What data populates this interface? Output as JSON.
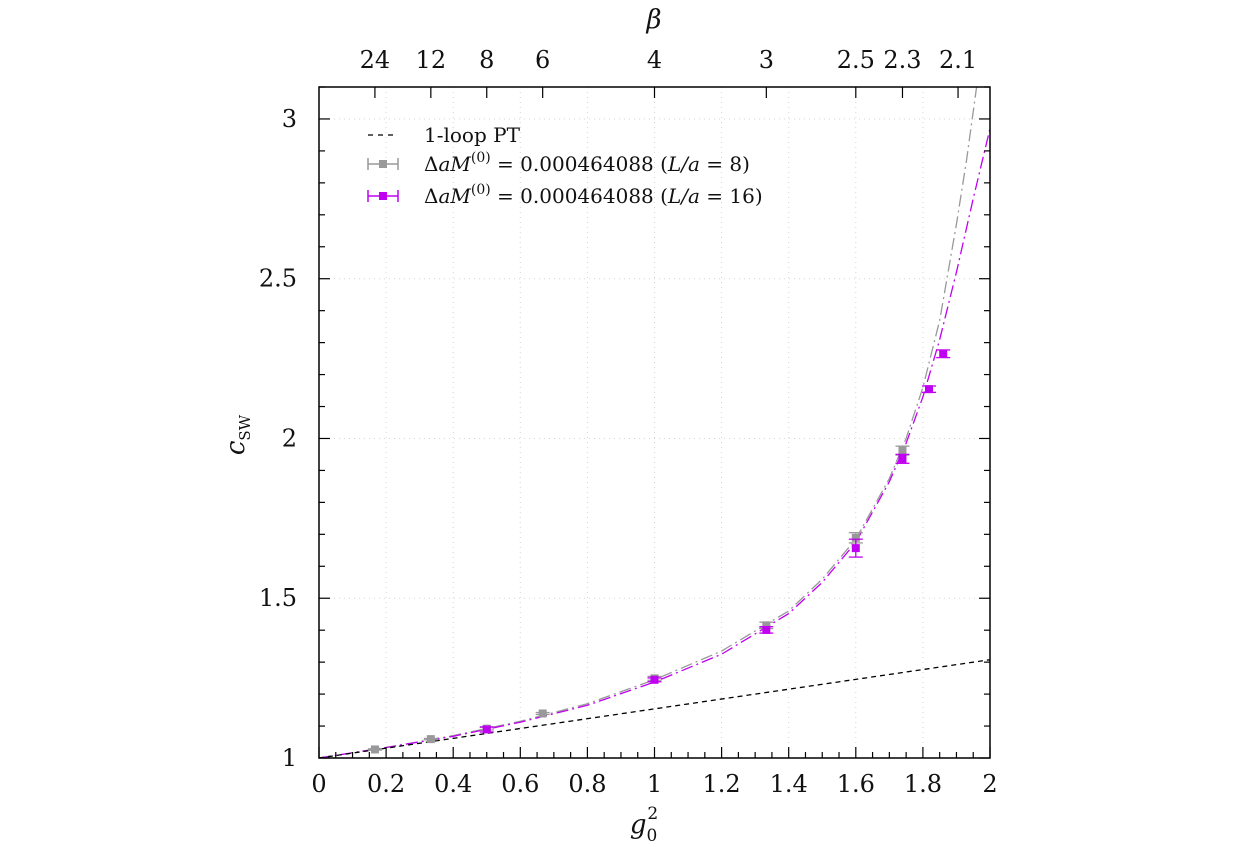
{
  "chart_data": {
    "type": "scatter",
    "xlabel": "g",
    "xlabel_sup": "2",
    "xlabel_sub": "0",
    "ylabel": "c",
    "ylabel_sub": "SW",
    "top_axis_label": "β",
    "xlim": [
      0,
      2
    ],
    "ylim": [
      1,
      3.1
    ],
    "grid": true,
    "legend_position": "top-left",
    "x_ticks": [
      0,
      0.2,
      0.4,
      0.6,
      0.8,
      1,
      1.2,
      1.4,
      1.6,
      1.8,
      2
    ],
    "x_tick_labels": [
      "0",
      "0.2",
      "0.4",
      "0.6",
      "0.8",
      "1",
      "1.2",
      "1.4",
      "1.6",
      "1.8",
      "2"
    ],
    "y_ticks": [
      1,
      1.5,
      2,
      2.5,
      3
    ],
    "y_tick_labels": [
      "1",
      "1.5",
      "2",
      "2.5",
      "3"
    ],
    "top_ticks": [
      {
        "beta": 24,
        "label": "24"
      },
      {
        "beta": 12,
        "label": "12"
      },
      {
        "beta": 8,
        "label": "8"
      },
      {
        "beta": 6,
        "label": "6"
      },
      {
        "beta": 4,
        "label": "4"
      },
      {
        "beta": 3,
        "label": "3"
      },
      {
        "beta": 2.5,
        "label": "2.5"
      },
      {
        "beta": 2.3,
        "label": "2.3"
      },
      {
        "beta": 2.1,
        "label": "2.1"
      }
    ],
    "series": [
      {
        "name": "1-loop PT",
        "kind": "line",
        "style": "dashed",
        "color": "#000000",
        "x": [
          0,
          2
        ],
        "y": [
          1,
          1.3076
        ]
      },
      {
        "name": "ΔaM(0) = 0.000464088 (L/a = 8)",
        "legend_pre": "Δ",
        "legend_it1": "aM",
        "legend_sup": "(0)",
        "legend_mid": " = 0.000464088 (",
        "legend_it2": "L/a",
        "legend_post": " = 8)",
        "kind": "points",
        "color": "#999999",
        "x": [
          0.1667,
          0.3333,
          0.5,
          0.6667,
          1.0,
          1.3333,
          1.6,
          1.7391
        ],
        "y": [
          1.0268,
          1.0591,
          1.0917,
          1.1393,
          1.2493,
          1.4151,
          1.6891,
          1.962
        ],
        "err": [
          0.002,
          0.002,
          0.004,
          0.003,
          0.006,
          0.01,
          0.016,
          0.014
        ],
        "fit": [
          [
            0,
            1.0
          ],
          [
            0.2,
            1.033
          ],
          [
            0.4,
            1.07
          ],
          [
            0.6,
            1.115
          ],
          [
            0.8,
            1.17
          ],
          [
            1.0,
            1.245
          ],
          [
            1.2,
            1.335
          ],
          [
            1.4,
            1.46
          ],
          [
            1.5,
            1.56
          ],
          [
            1.6,
            1.685
          ],
          [
            1.7,
            1.875
          ],
          [
            1.75,
            2.0
          ],
          [
            1.8,
            2.16
          ],
          [
            1.85,
            2.37
          ],
          [
            1.9,
            2.67
          ],
          [
            1.93,
            2.87
          ],
          [
            1.96,
            3.1
          ]
        ]
      },
      {
        "name": "ΔaM(0) = 0.000464088 (L/a = 16)",
        "legend_pre": "Δ",
        "legend_it1": "aM",
        "legend_sup": "(0)",
        "legend_mid": " = 0.000464088 (",
        "legend_it2": "L/a",
        "legend_post": " = 16)",
        "kind": "points",
        "color": "#c000f0",
        "x": [
          0.5,
          1.0,
          1.3333,
          1.6,
          1.7391,
          1.8182,
          1.8605
        ],
        "y": [
          1.0894,
          1.2447,
          1.4009,
          1.6568,
          1.9363,
          2.1543,
          2.2651
        ],
        "err": [
          0.008,
          0.006,
          0.01,
          0.028,
          0.014,
          0.01,
          0.012
        ],
        "fit": [
          [
            0,
            1.0
          ],
          [
            0.2,
            1.033
          ],
          [
            0.4,
            1.068
          ],
          [
            0.6,
            1.112
          ],
          [
            0.8,
            1.165
          ],
          [
            1.0,
            1.238
          ],
          [
            1.2,
            1.325
          ],
          [
            1.4,
            1.452
          ],
          [
            1.5,
            1.55
          ],
          [
            1.6,
            1.675
          ],
          [
            1.7,
            1.865
          ],
          [
            1.75,
            1.985
          ],
          [
            1.8,
            2.13
          ],
          [
            1.85,
            2.31
          ],
          [
            1.9,
            2.52
          ],
          [
            1.95,
            2.75
          ],
          [
            2.0,
            2.97
          ]
        ]
      }
    ]
  }
}
